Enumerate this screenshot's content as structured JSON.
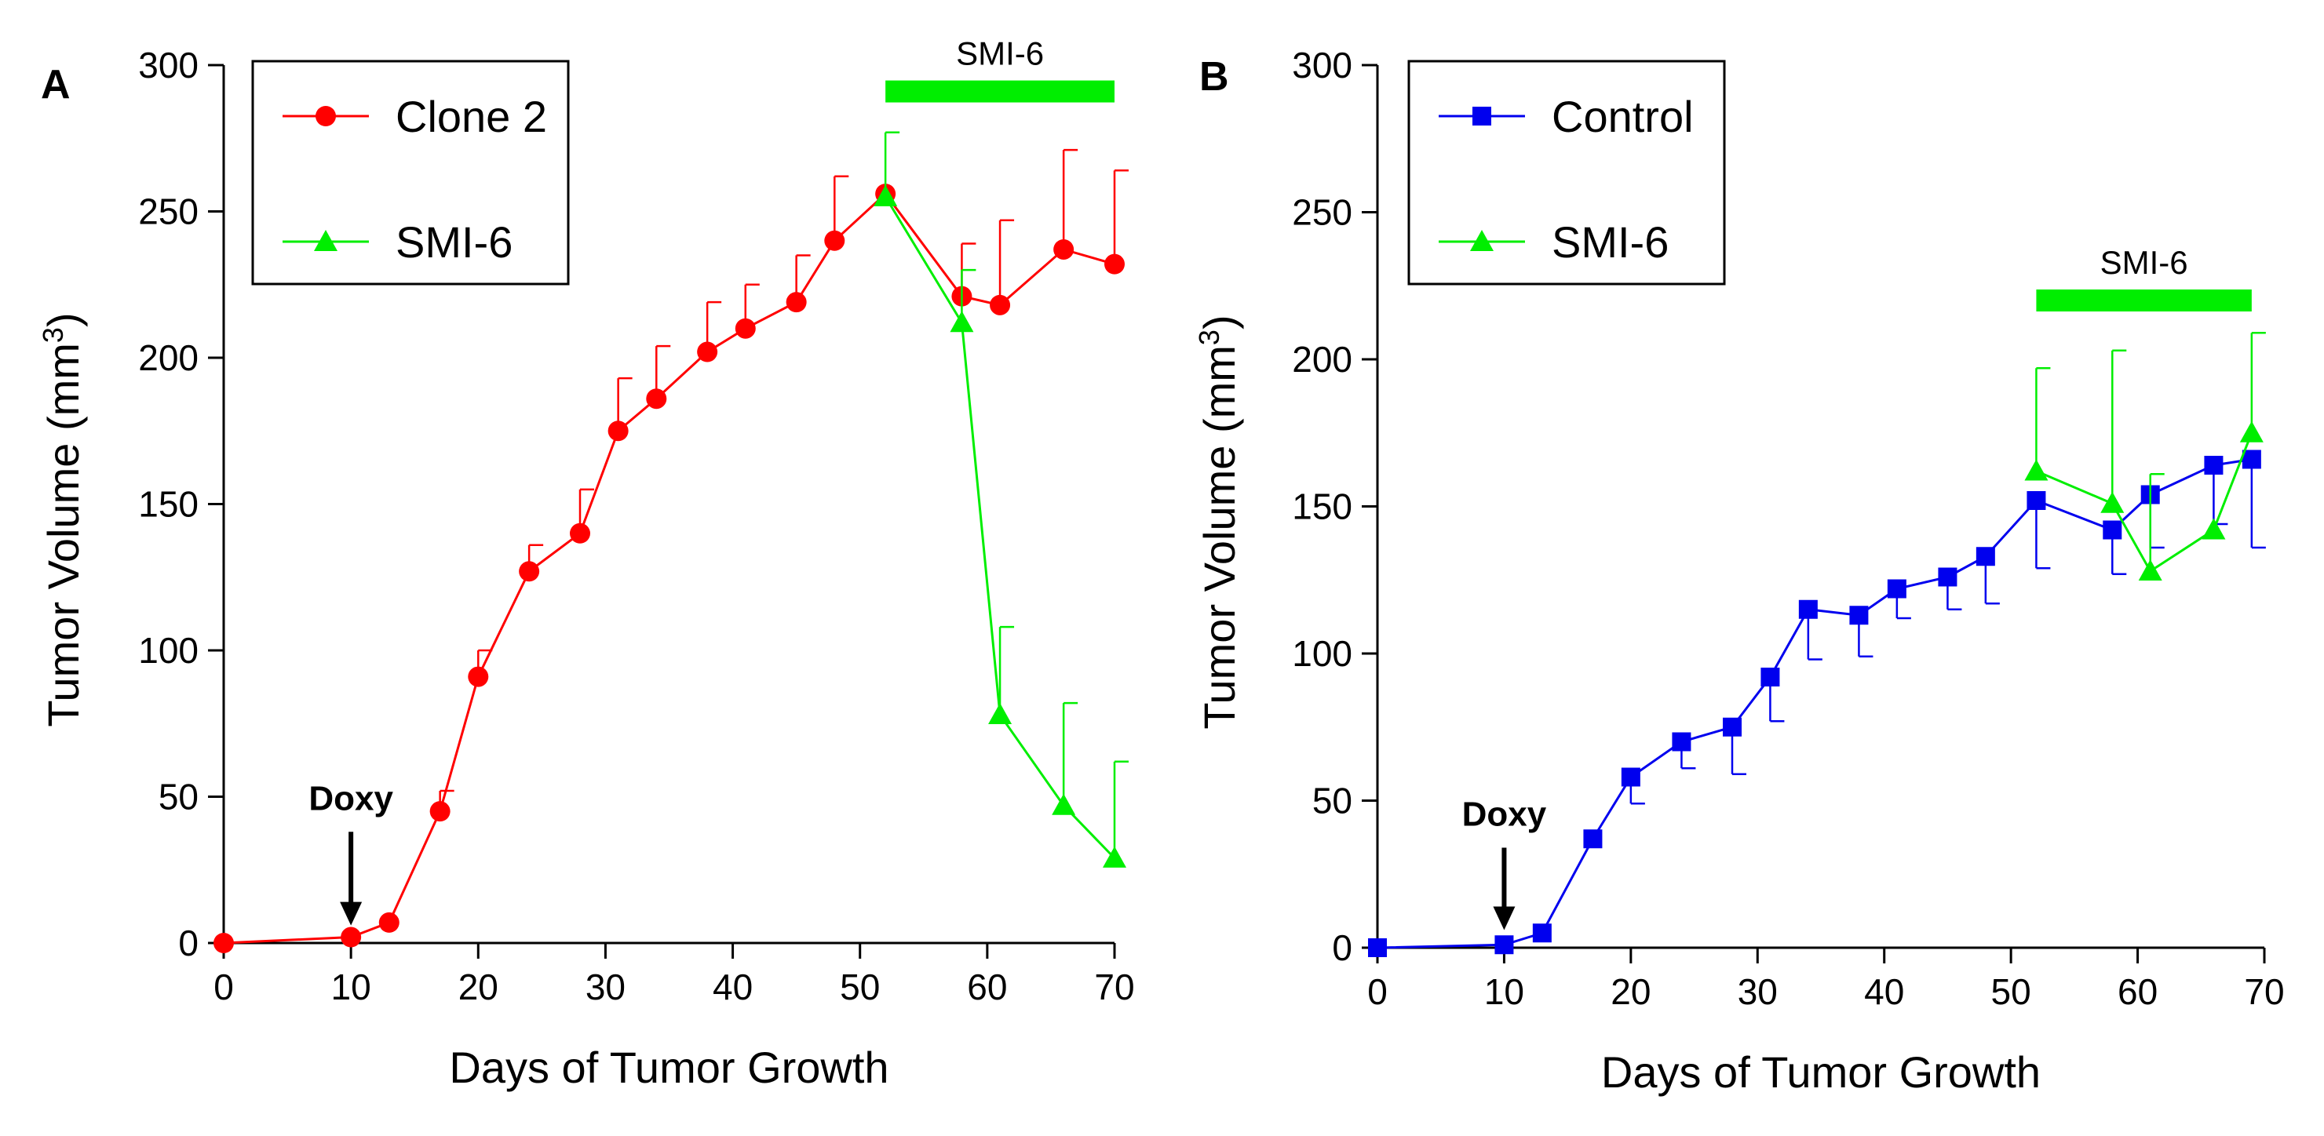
{
  "chart_data": [
    {
      "type": "line",
      "panel_label": "A",
      "xlabel": "Days of Tumor Growth",
      "ylabel": "Tumor Volume (mm",
      "ylabel_sup": "3",
      "ylabel_close": ")",
      "xlim": [
        0,
        70
      ],
      "ylim": [
        0,
        300
      ],
      "xticks": [
        0,
        10,
        20,
        30,
        40,
        50,
        60,
        70
      ],
      "yticks": [
        0,
        50,
        100,
        150,
        200,
        250,
        300
      ],
      "grid": false,
      "legend_position": "top-left",
      "series": [
        {
          "name": "Clone 2",
          "color": "#ff0000",
          "marker": "circle",
          "x": [
            0,
            10,
            13,
            17,
            20,
            24,
            28,
            31,
            34,
            38,
            41,
            45,
            48,
            52,
            58,
            61,
            66,
            70
          ],
          "y": [
            0,
            2,
            7,
            45,
            91,
            127,
            140,
            175,
            186,
            202,
            210,
            219,
            240,
            256,
            221,
            218,
            237,
            232
          ],
          "err": [
            0,
            0,
            0,
            7,
            9,
            9,
            15,
            18,
            18,
            17,
            15,
            16,
            22,
            0,
            18,
            29,
            34,
            32
          ]
        },
        {
          "name": "SMI-6",
          "color": "#00ee00",
          "marker": "triangle",
          "x": [
            52,
            58,
            61,
            66,
            70
          ],
          "y": [
            255,
            212,
            78,
            47,
            29
          ],
          "err": [
            22,
            18,
            30,
            35,
            33
          ]
        }
      ],
      "annotations": [
        {
          "type": "treatment-bar",
          "label": "SMI-6",
          "x_start": 52,
          "x_end": 70,
          "y": 291,
          "color": "#00ee00"
        },
        {
          "type": "arrow",
          "label": "Doxy",
          "x": 10,
          "y_from": 38,
          "y_to": 6
        }
      ]
    },
    {
      "type": "line",
      "panel_label": "B",
      "xlabel": "Days of Tumor Growth",
      "ylabel": "Tumor Volume (mm",
      "ylabel_sup": "3",
      "ylabel_close": ")",
      "xlim": [
        0,
        70
      ],
      "ylim": [
        0,
        300
      ],
      "xticks": [
        0,
        10,
        20,
        30,
        40,
        50,
        60,
        70
      ],
      "yticks": [
        0,
        50,
        100,
        150,
        200,
        250,
        300
      ],
      "grid": false,
      "legend_position": "top-left",
      "series": [
        {
          "name": "Control",
          "color": "#0000ee",
          "marker": "square",
          "x": [
            0,
            10,
            13,
            17,
            20,
            24,
            28,
            31,
            34,
            38,
            41,
            45,
            48,
            52,
            58,
            61,
            66,
            69
          ],
          "y": [
            0,
            1,
            5,
            37,
            58,
            70,
            75,
            92,
            115,
            113,
            122,
            126,
            133,
            152,
            142,
            154,
            164,
            166
          ],
          "err_low": [
            0,
            0,
            0,
            0,
            9,
            9,
            16,
            15,
            17,
            14,
            10,
            11,
            16,
            23,
            15,
            18,
            20,
            30
          ],
          "err_high": [
            0,
            0,
            0,
            0,
            0,
            0,
            0,
            0,
            0,
            0,
            0,
            0,
            0,
            0,
            0,
            0,
            0,
            0
          ]
        },
        {
          "name": "SMI-6",
          "color": "#00ee00",
          "marker": "triangle",
          "x": [
            52,
            58,
            61,
            66,
            69
          ],
          "y": [
            162,
            151,
            128,
            142,
            175
          ],
          "err": [
            35,
            52,
            33,
            0,
            34
          ]
        }
      ],
      "annotations": [
        {
          "type": "treatment-bar",
          "label": "SMI-6",
          "x_start": 52,
          "x_end": 69,
          "y": 220,
          "color": "#00ee00"
        },
        {
          "type": "arrow",
          "label": "Doxy",
          "x": 10,
          "y_from": 34,
          "y_to": 6
        }
      ]
    }
  ]
}
